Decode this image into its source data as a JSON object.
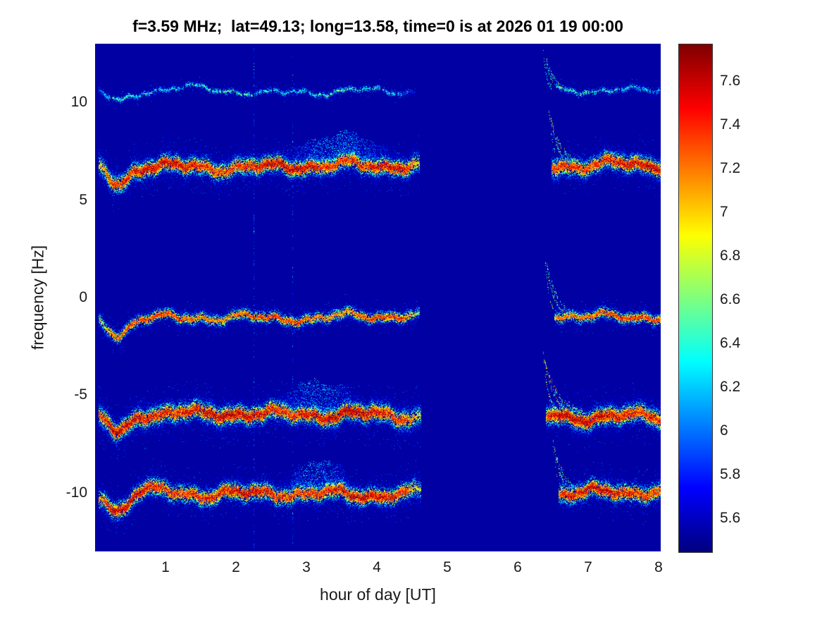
{
  "chart_data": {
    "type": "heatmap",
    "title": "f=3.59 MHz;  lat=49.13; long=13.58, time=0 is at 2026 01 19 00:00",
    "xlabel": "hour of day [UT]",
    "ylabel": "frequency [Hz]",
    "xlim": [
      0,
      8.03
    ],
    "ylim": [
      -13,
      13
    ],
    "x_ticks": [
      "1",
      "2",
      "3",
      "4",
      "5",
      "6",
      "7",
      "8"
    ],
    "y_ticks": [
      "10",
      "5",
      "0",
      "-5",
      "-10"
    ],
    "colormap": "jet",
    "background_value": 5.53,
    "colorbar": {
      "min": 5.45,
      "max": 7.77,
      "ticks": [
        "7.6",
        "7.4",
        "7.2",
        "7",
        "6.8",
        "6.6",
        "6.4",
        "6.2",
        "6",
        "5.8",
        "5.6"
      ]
    },
    "data_gap_hours": [
      4.62,
      6.35
    ],
    "vertical_artifact_hours": [
      2.25,
      2.8
    ],
    "traces": [
      {
        "name": "doppler-trace-plus10",
        "base_freq_hz": 10.6,
        "peak_value": 6.45,
        "core_sigma_hz": 0.1,
        "halo_sigma_hz": 0.14,
        "density": 6,
        "wiggle_hz": 0.22,
        "onset_dip_hz": 0.5,
        "segments": [
          [
            0.05,
            4.55
          ],
          [
            6.55,
            8.02
          ]
        ],
        "chirp": {
          "x0": 6.36,
          "amp_hz": 2.3,
          "tau_h": 0.045,
          "strength": 0.8
        }
      },
      {
        "name": "doppler-trace-plus7",
        "base_freq_hz": 6.8,
        "peak_value": 7.55,
        "core_sigma_hz": 0.28,
        "halo_sigma_hz": 0.45,
        "density": 26,
        "wiggle_hz": 0.3,
        "onset_dip_hz": 0.9,
        "segments": [
          [
            0.05,
            4.6
          ],
          [
            6.48,
            8.02
          ]
        ],
        "cloud": {
          "x0": 2.55,
          "x1": 4.35,
          "height_hz": 1.3
        },
        "chirp": {
          "x0": 6.44,
          "amp_hz": 3.1,
          "tau_h": 0.055,
          "strength": 1.1
        }
      },
      {
        "name": "doppler-trace-minus1",
        "base_freq_hz": -1.05,
        "peak_value": 7.35,
        "core_sigma_hz": 0.18,
        "halo_sigma_hz": 0.28,
        "density": 14,
        "wiggle_hz": 0.25,
        "onset_dip_hz": 0.8,
        "segments": [
          [
            0.05,
            4.6
          ],
          [
            6.52,
            8.02
          ]
        ],
        "chirp": {
          "x0": 6.38,
          "amp_hz": 3.6,
          "tau_h": 0.06,
          "strength": 0.95
        }
      },
      {
        "name": "doppler-trace-minus6",
        "base_freq_hz": -5.95,
        "peak_value": 7.6,
        "core_sigma_hz": 0.3,
        "halo_sigma_hz": 0.5,
        "density": 28,
        "wiggle_hz": 0.3,
        "onset_dip_hz": 1.0,
        "segments": [
          [
            0.05,
            4.62
          ],
          [
            6.4,
            8.02
          ]
        ],
        "cloud": {
          "x0": 2.6,
          "x1": 3.75,
          "height_hz": 1.6
        },
        "chirp": {
          "x0": 6.36,
          "amp_hz": 3.3,
          "tau_h": 0.07,
          "strength": 1.2
        }
      },
      {
        "name": "doppler-trace-minus10",
        "base_freq_hz": -9.95,
        "peak_value": 7.55,
        "core_sigma_hz": 0.28,
        "halo_sigma_hz": 0.45,
        "density": 24,
        "wiggle_hz": 0.3,
        "onset_dip_hz": 1.0,
        "segments": [
          [
            0.05,
            4.62
          ],
          [
            6.58,
            8.02
          ]
        ],
        "cloud": {
          "x0": 2.6,
          "x1": 3.7,
          "height_hz": 1.4
        },
        "chirp": {
          "x0": 6.5,
          "amp_hz": 2.7,
          "tau_h": 0.05,
          "strength": 0.9
        }
      }
    ]
  }
}
